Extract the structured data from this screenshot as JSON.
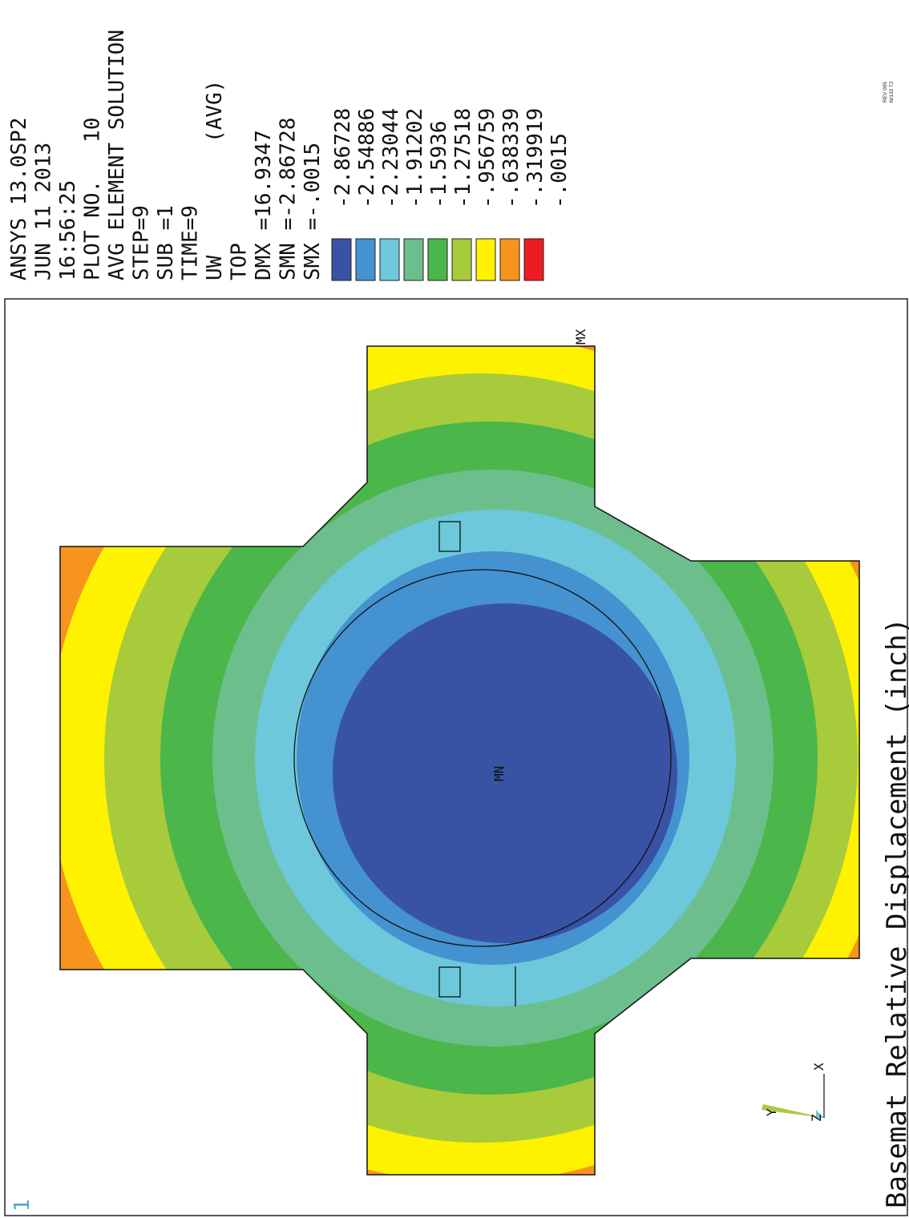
{
  "header_lines": [
    "ANSYS 13.0SP2",
    "JUN 11 2013",
    "16:56:25",
    "PLOT NO.   10",
    "AVG ELEMENT SOLUTION",
    "STEP=9",
    "SUB =1",
    "TIME=9",
    "UW         (AVG)",
    "TOP",
    "DMX =16.9347",
    "SMN =-2.86728",
    "SMX =-.0015"
  ],
  "legend": [
    {
      "value": "-2.86728",
      "color": "#3953a4"
    },
    {
      "value": "-2.54886",
      "color": "#4492d0"
    },
    {
      "value": "-2.23044",
      "color": "#6cc8da"
    },
    {
      "value": "-1.91202",
      "color": "#6cbf8c"
    },
    {
      "value": "-1.5936",
      "color": "#4bb649"
    },
    {
      "value": "-1.27518",
      "color": "#a7cb3b"
    },
    {
      "value": "-.956759",
      "color": "#fff200"
    },
    {
      "value": "-.638339",
      "color": "#f7941d"
    },
    {
      "value": "-.319919",
      "color": "#ed1c24"
    },
    {
      "value": "-.0015",
      "color": ""
    }
  ],
  "plot_title": "Basemat Relative Displacement  (inch)",
  "window_number": "1",
  "rev_lines": [
    "REV 005",
    "NI132 T2"
  ],
  "markers": {
    "max": "MX",
    "min": "MN"
  },
  "triad": {
    "x": "X",
    "y": "Y",
    "z": "Z"
  }
}
